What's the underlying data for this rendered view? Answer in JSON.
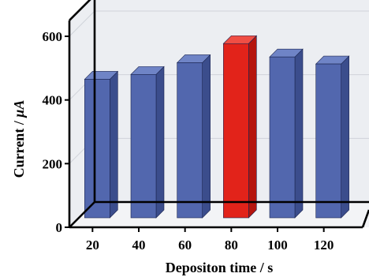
{
  "chart_data": {
    "type": "bar",
    "style": "3d",
    "categories": [
      "20",
      "40",
      "60",
      "80",
      "100",
      "120"
    ],
    "values": [
      470,
      485,
      522,
      582,
      540,
      518
    ],
    "highlight_index": 3,
    "colors": {
      "bar_front": "#5267ae",
      "bar_top": "#6f84c6",
      "bar_side": "#3b4d8c",
      "highlight_front": "#e2231a",
      "highlight_top": "#f04e44",
      "highlight_side": "#b5150e",
      "wall": "#eceef2",
      "floor": "#f3f4f6",
      "gridline": "#d0d3da"
    },
    "xlabel": "Depositon time / s",
    "ylabel_prefix": "Current / ",
    "ylabel_unit": "μA",
    "yticks": [
      0,
      200,
      400,
      600
    ],
    "ylim": [
      0,
      650
    ],
    "grid": true
  }
}
